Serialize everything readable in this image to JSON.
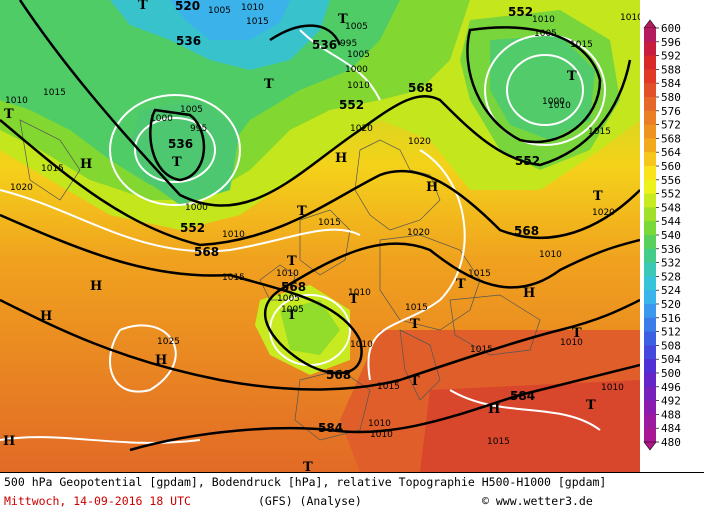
{
  "map": {
    "big_labels": [
      {
        "text": "520",
        "c": "#000"
      },
      {
        "text": "536",
        "c": "#000"
      },
      {
        "text": "536",
        "c": "#000"
      },
      {
        "text": "536",
        "c": "#000"
      },
      {
        "text": "552",
        "c": "#000"
      },
      {
        "text": "552",
        "c": "#000"
      },
      {
        "text": "552",
        "c": "#000"
      },
      {
        "text": "552",
        "c": "#000"
      },
      {
        "text": "568",
        "c": "#000"
      },
      {
        "text": "568",
        "c": "#000"
      },
      {
        "text": "568",
        "c": "#000"
      },
      {
        "text": "568",
        "c": "#000"
      },
      {
        "text": "568",
        "c": "#000"
      },
      {
        "text": "584",
        "c": "#000"
      },
      {
        "text": "584",
        "c": "#000"
      }
    ],
    "pressure_labels": [
      "1010",
      "1015",
      "1010",
      "1015",
      "1005",
      "1000",
      "1005",
      "1000",
      "995",
      "1005",
      "1000",
      "1010",
      "1010",
      "1015",
      "1020",
      "1010",
      "1020",
      "1005",
      "1000",
      "1005",
      "1015",
      "1020",
      "1015",
      "1010",
      "1015",
      "1020",
      "1010",
      "1015",
      "1005",
      "1010",
      "1010",
      "1015",
      "1025",
      "1010",
      "1015",
      "1020",
      "1015",
      "1015",
      "1010",
      "1010",
      "1015",
      "1010",
      "1010",
      "995",
      "1010",
      "1005"
    ],
    "high_marker": "H",
    "low_marker": "T",
    "colors": {
      "contour_black": "#000000",
      "isobar_white": "#ffffff",
      "borders": "#555555"
    }
  },
  "legend": {
    "values": [
      "600",
      "596",
      "592",
      "588",
      "584",
      "580",
      "576",
      "572",
      "568",
      "564",
      "560",
      "556",
      "552",
      "548",
      "544",
      "540",
      "536",
      "532",
      "528",
      "524",
      "520",
      "516",
      "512",
      "508",
      "504",
      "500",
      "496",
      "492",
      "488",
      "484",
      "480"
    ],
    "colors": [
      "#b31c5f",
      "#c81e3d",
      "#d82828",
      "#e03a26",
      "#e2502a",
      "#e5682a",
      "#e97e26",
      "#ee9320",
      "#f2a91c",
      "#f7c61a",
      "#fbe31c",
      "#eef21c",
      "#c8ea20",
      "#a0e028",
      "#7ad838",
      "#58d05a",
      "#44cc8a",
      "#3cc8b6",
      "#38c4d8",
      "#3ab4ea",
      "#3c98ec",
      "#3c7ce8",
      "#3c60e2",
      "#4448dc",
      "#5030d4",
      "#6424c8",
      "#7820bc",
      "#8c1cae",
      "#9c1aa0",
      "#a81894",
      "#b01688"
    ]
  },
  "footer": {
    "line1": "500 hPa Geopotential [gpdam], Bodendruck [hPa], relative Topographie H500-H1000 [gpdam]",
    "date": "Mittwoch, 14-09-2016  18 UTC",
    "model": "(GFS)  (Analyse)",
    "copyright": "© www.wetter3.de"
  }
}
